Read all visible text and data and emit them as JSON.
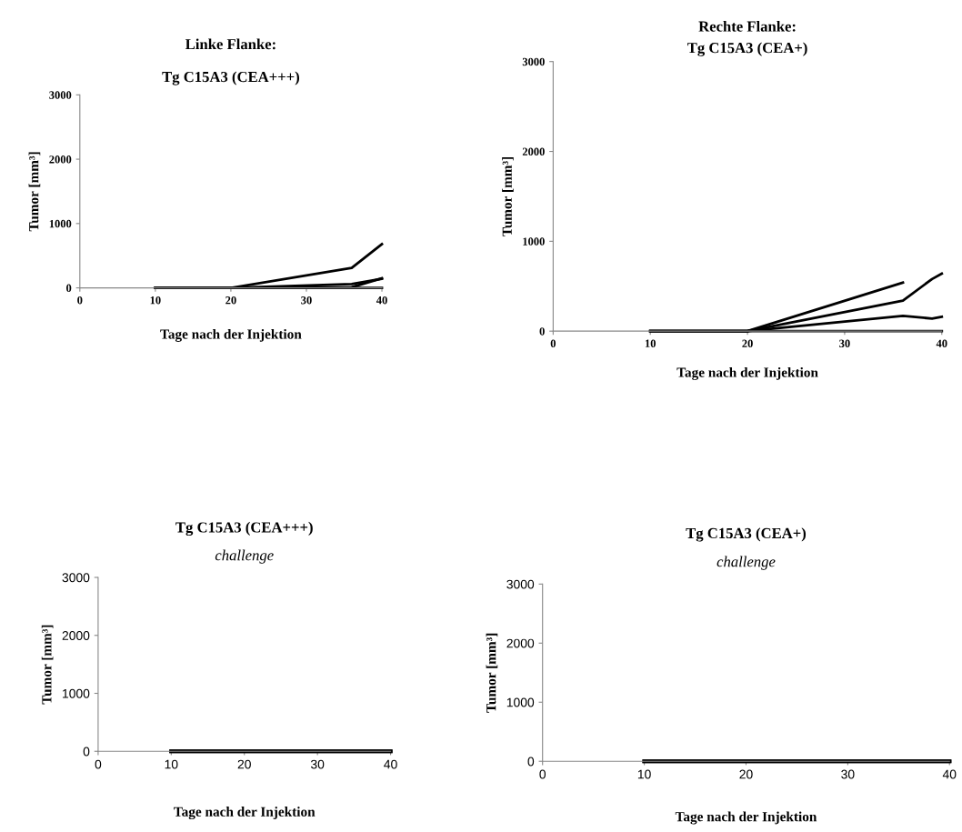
{
  "chart_data": [
    {
      "type": "line",
      "title": "Linke Flanke:",
      "subtitle": "Tg C15A3 (CEA+++)",
      "xlabel": "Tage nach der Injektion",
      "ylabel": "Tumor [mm³]",
      "xlim": [
        0,
        40
      ],
      "xticks": [
        0,
        10,
        20,
        30,
        40
      ],
      "ylim": [
        0,
        3000
      ],
      "yticks": [
        0,
        1000,
        2000,
        3000
      ],
      "grid": false,
      "marker": "none",
      "line_style": "solid",
      "series": [
        {
          "color": "#000000",
          "x": [
            10,
            20,
            36,
            40
          ],
          "values": [
            0,
            0,
            310,
            680
          ]
        },
        {
          "color": "#000000",
          "x": [
            10,
            20,
            36,
            40
          ],
          "values": [
            0,
            0,
            60,
            140
          ]
        },
        {
          "color": "#000000",
          "x": [
            10,
            20,
            36,
            40
          ],
          "values": [
            0,
            0,
            10,
            150
          ]
        },
        {
          "color": "#000000",
          "x": [
            10,
            20,
            36,
            40
          ],
          "values": [
            0,
            0,
            0,
            0
          ]
        }
      ]
    },
    {
      "type": "line",
      "title": "Rechte Flanke:",
      "subtitle": "Tg C15A3 (CEA+)",
      "xlabel": "Tage nach der Injektion",
      "ylabel": "Tumor [mm³]",
      "xlim": [
        0,
        40
      ],
      "xticks": [
        0,
        10,
        20,
        30,
        40
      ],
      "ylim": [
        0,
        3000
      ],
      "yticks": [
        0,
        1000,
        2000,
        3000
      ],
      "grid": false,
      "marker": "none",
      "line_style": "solid",
      "series": [
        {
          "color": "#000000",
          "x": [
            10,
            20,
            36
          ],
          "values": [
            0,
            0,
            540
          ]
        },
        {
          "color": "#000000",
          "x": [
            10,
            20,
            36,
            39,
            40
          ],
          "values": [
            0,
            0,
            340,
            580,
            640
          ]
        },
        {
          "color": "#000000",
          "x": [
            10,
            20,
            36,
            39,
            40
          ],
          "values": [
            0,
            0,
            170,
            140,
            160
          ]
        },
        {
          "color": "#000000",
          "x": [
            10,
            20,
            36,
            39,
            40
          ],
          "values": [
            0,
            0,
            0,
            0,
            0
          ]
        }
      ]
    },
    {
      "type": "line",
      "title": "Tg C15A3 (CEA+++)",
      "subtitle": "challenge",
      "xlabel": "Tage nach der Injektion",
      "ylabel": "Tumor [mm³]",
      "xlim": [
        0,
        40
      ],
      "xticks": [
        0,
        10,
        20,
        30,
        40
      ],
      "ylim": [
        0,
        3000
      ],
      "yticks": [
        0,
        1000,
        2000,
        3000
      ],
      "grid": false,
      "marker": "none",
      "line_style": "solid",
      "series": [
        {
          "color": "#000000",
          "x": [
            10,
            20,
            30,
            40
          ],
          "values": [
            0,
            0,
            0,
            0
          ]
        },
        {
          "color": "#000000",
          "x": [
            10,
            20,
            30,
            40
          ],
          "values": [
            0,
            0,
            0,
            0
          ]
        }
      ]
    },
    {
      "type": "line",
      "title": "Tg C15A3 (CEA+)",
      "subtitle": "challenge",
      "xlabel": "Tage nach der Injektion",
      "ylabel": "Tumor [mm³]",
      "xlim": [
        0,
        40
      ],
      "xticks": [
        0,
        10,
        20,
        30,
        40
      ],
      "ylim": [
        0,
        3000
      ],
      "yticks": [
        0,
        1000,
        2000,
        3000
      ],
      "grid": false,
      "marker": "none",
      "line_style": "solid",
      "series": [
        {
          "color": "#000000",
          "x": [
            10,
            20,
            30,
            40
          ],
          "values": [
            0,
            0,
            0,
            0
          ]
        },
        {
          "color": "#000000",
          "x": [
            10,
            20,
            30,
            40
          ],
          "values": [
            0,
            0,
            0,
            0
          ]
        }
      ]
    }
  ]
}
